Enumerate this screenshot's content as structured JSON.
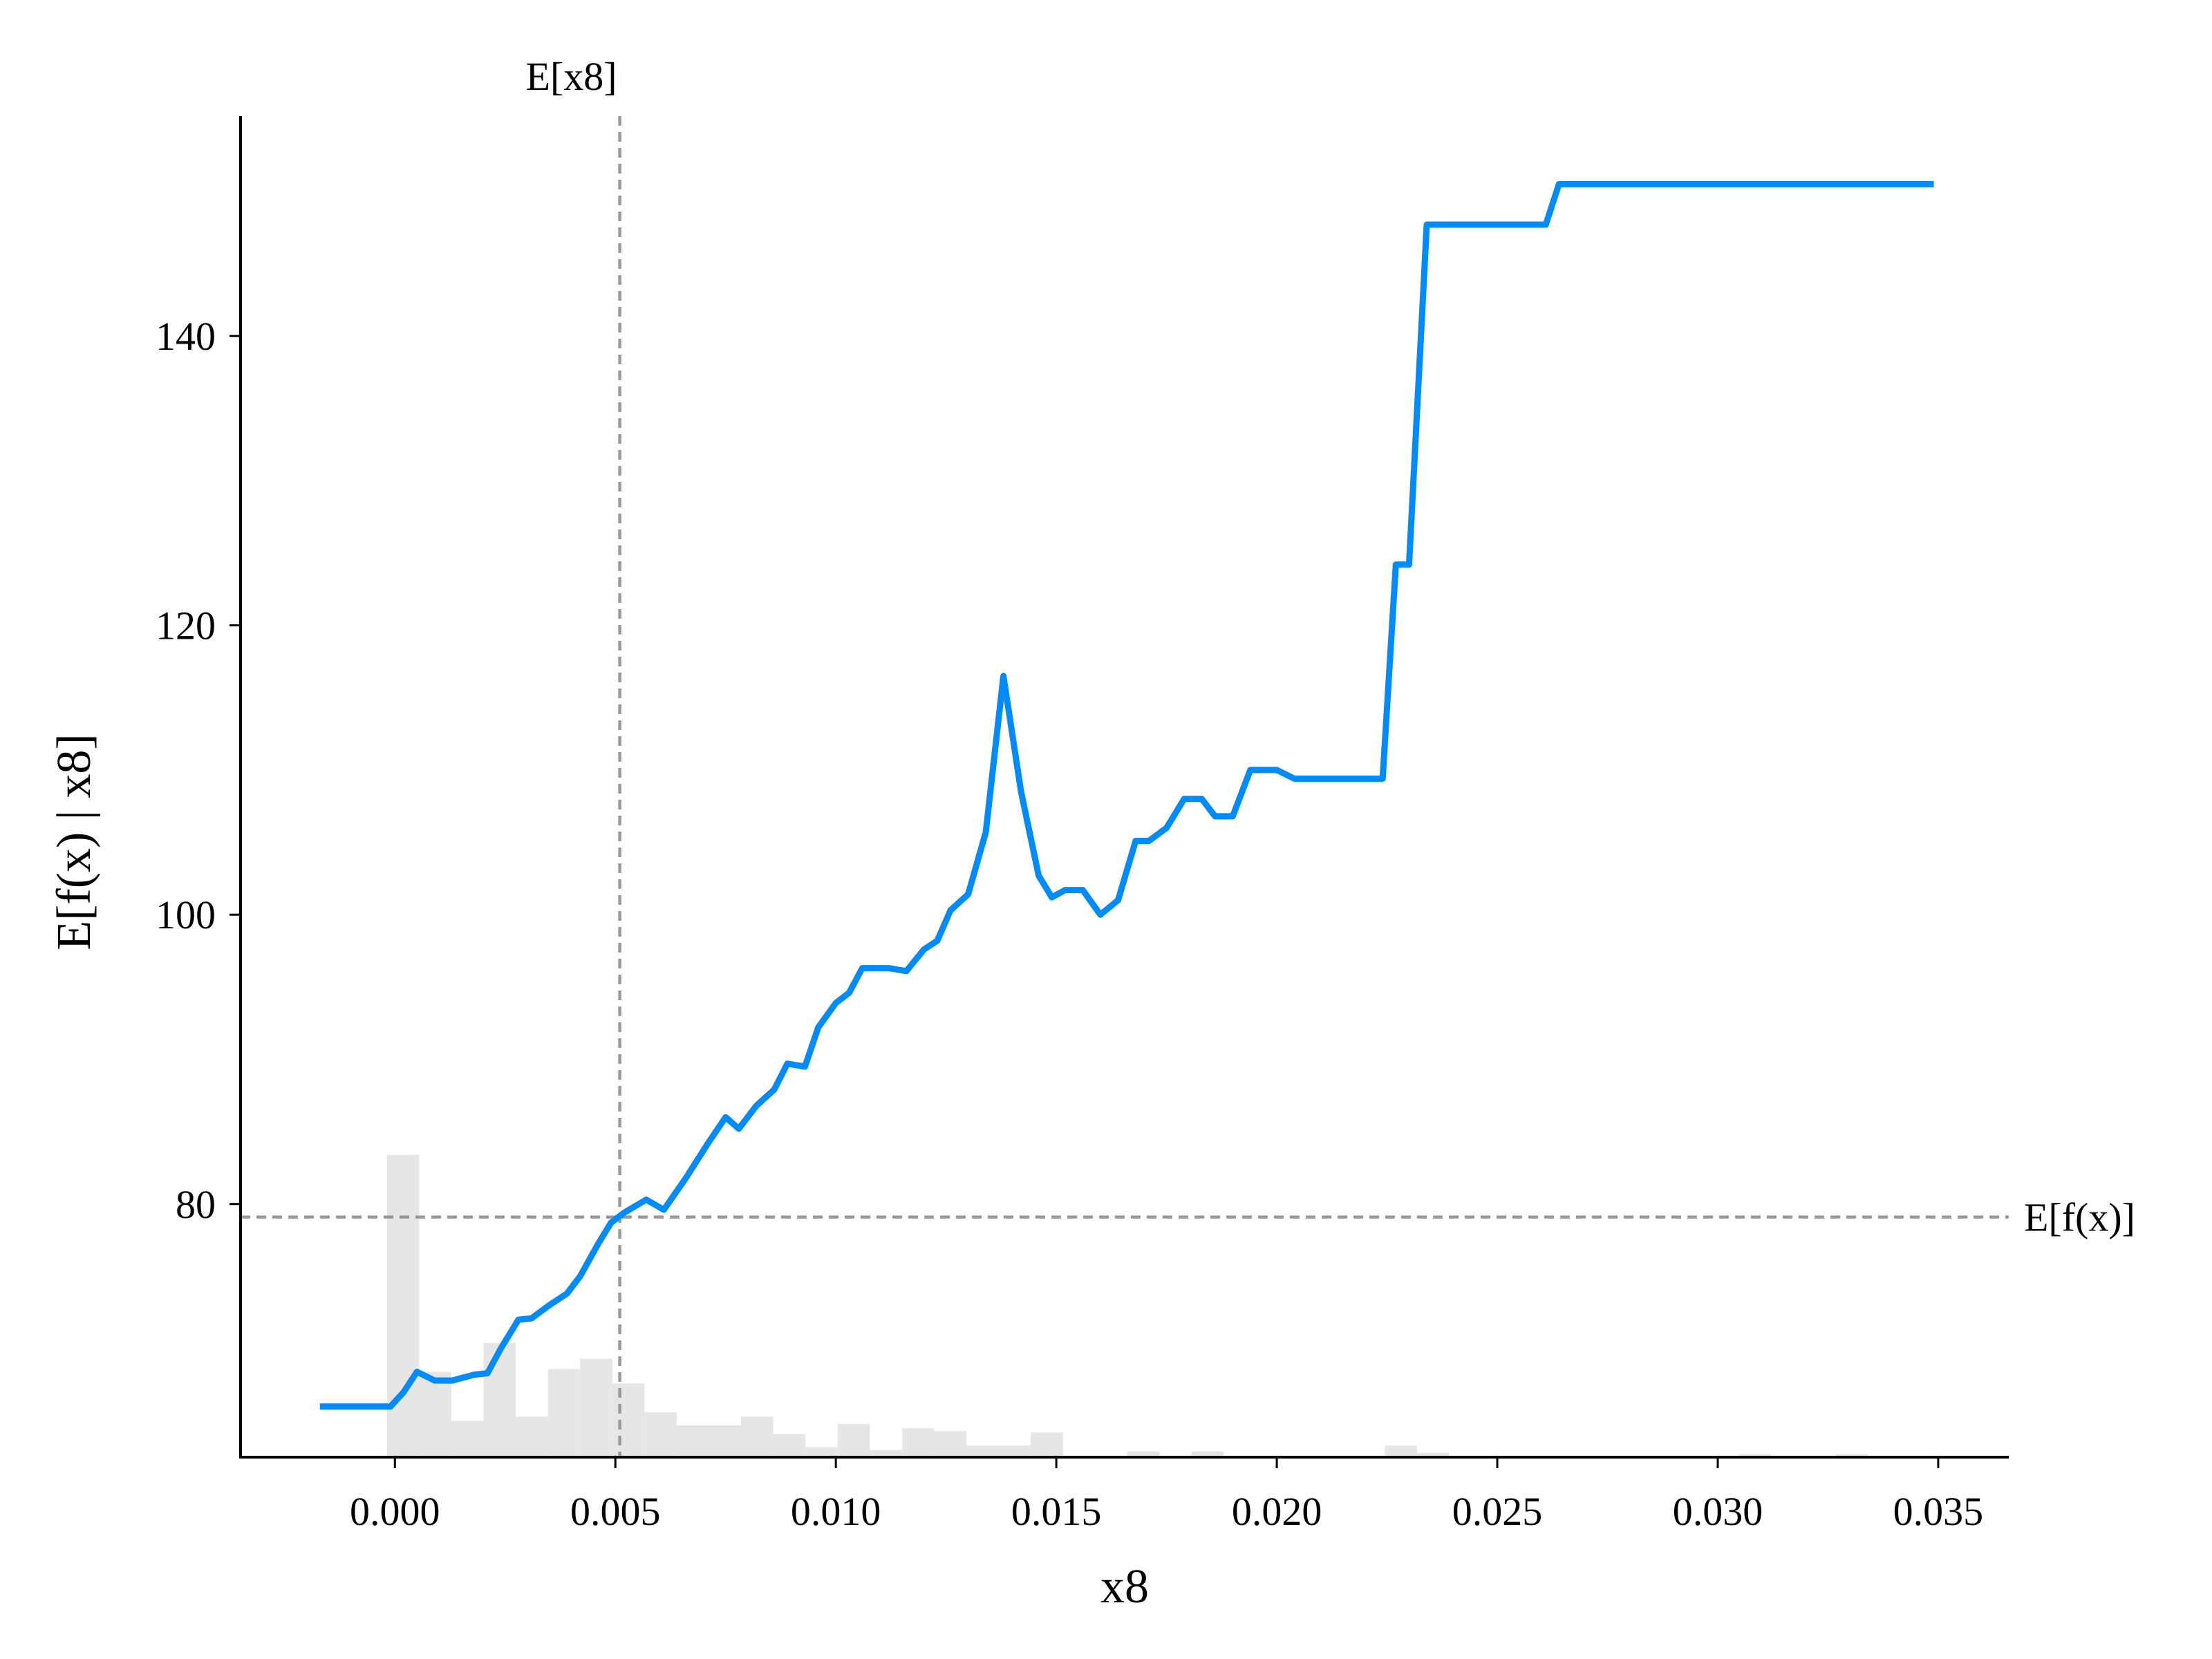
{
  "chart_data": {
    "type": "line",
    "title": "",
    "xlabel": "x8",
    "ylabel": "E[f(x) | x8]",
    "xlim": [
      -0.0035,
      0.0366
    ],
    "ylim": [
      62.5,
      155.2
    ],
    "x_ticks": [
      0.0,
      0.005,
      0.01,
      0.015,
      0.02,
      0.025,
      0.03,
      0.035
    ],
    "x_tick_labels": [
      "0.000",
      "0.005",
      "0.010",
      "0.015",
      "0.020",
      "0.025",
      "0.030",
      "0.035"
    ],
    "y_ticks": [
      80,
      100,
      120,
      140
    ],
    "y_tick_labels": [
      "80",
      "100",
      "120",
      "140"
    ],
    "grid": false,
    "reference_lines": {
      "vertical": {
        "x": 0.0051,
        "label": "E[x8]"
      },
      "horizontal": {
        "y": 79.1,
        "label": "E[f(x)]"
      }
    },
    "series": [
      {
        "color": "#008bfb",
        "points": [
          [
            -0.0017,
            66.0
          ],
          [
            -0.0001,
            66.0
          ],
          [
            0.0002,
            67.0
          ],
          [
            0.0005,
            68.4
          ],
          [
            0.0009,
            67.8
          ],
          [
            0.0013,
            67.8
          ],
          [
            0.0018,
            68.2
          ],
          [
            0.0021,
            68.3
          ],
          [
            0.0024,
            70.0
          ],
          [
            0.0028,
            72.0
          ],
          [
            0.0031,
            72.1
          ],
          [
            0.0035,
            73.0
          ],
          [
            0.0039,
            73.8
          ],
          [
            0.0042,
            75.0
          ],
          [
            0.0046,
            77.2
          ],
          [
            0.0049,
            78.7
          ],
          [
            0.0052,
            79.4
          ],
          [
            0.0057,
            80.3
          ],
          [
            0.0061,
            79.6
          ],
          [
            0.0066,
            81.8
          ],
          [
            0.0071,
            84.2
          ],
          [
            0.0075,
            86.0
          ],
          [
            0.0078,
            85.2
          ],
          [
            0.0082,
            86.8
          ],
          [
            0.0086,
            87.9
          ],
          [
            0.0089,
            89.7
          ],
          [
            0.0093,
            89.5
          ],
          [
            0.0096,
            92.2
          ],
          [
            0.01,
            93.9
          ],
          [
            0.0103,
            94.6
          ],
          [
            0.0106,
            96.3
          ],
          [
            0.0112,
            96.3
          ],
          [
            0.0116,
            96.1
          ],
          [
            0.012,
            97.6
          ],
          [
            0.0123,
            98.2
          ],
          [
            0.0126,
            100.3
          ],
          [
            0.013,
            101.4
          ],
          [
            0.0134,
            105.7
          ],
          [
            0.0138,
            116.5
          ],
          [
            0.0142,
            108.5
          ],
          [
            0.0146,
            102.7
          ],
          [
            0.0149,
            101.2
          ],
          [
            0.0152,
            101.7
          ],
          [
            0.0156,
            101.7
          ],
          [
            0.016,
            100.0
          ],
          [
            0.0164,
            101.0
          ],
          [
            0.0168,
            105.1
          ],
          [
            0.0171,
            105.1
          ],
          [
            0.0175,
            106.0
          ],
          [
            0.0179,
            108.0
          ],
          [
            0.0183,
            108.0
          ],
          [
            0.0186,
            106.8
          ],
          [
            0.019,
            106.8
          ],
          [
            0.0194,
            110.0
          ],
          [
            0.02,
            110.0
          ],
          [
            0.0204,
            109.4
          ],
          [
            0.0224,
            109.4
          ],
          [
            0.0227,
            124.2
          ],
          [
            0.023,
            124.2
          ],
          [
            0.0234,
            147.7
          ],
          [
            0.0261,
            147.7
          ],
          [
            0.0264,
            150.5
          ],
          [
            0.0349,
            150.5
          ]
        ]
      }
    ],
    "histogram": {
      "color": "#e6e6e6",
      "bin_width": 0.00073,
      "bins": [
        [
          -0.00018,
          83.4
        ],
        [
          0.00055,
          68.4
        ],
        [
          0.00128,
          65.0
        ],
        [
          0.00201,
          70.4
        ],
        [
          0.00274,
          65.3
        ],
        [
          0.00347,
          68.6
        ],
        [
          0.0042,
          69.3
        ],
        [
          0.00493,
          67.6
        ],
        [
          0.00566,
          65.6
        ],
        [
          0.00639,
          64.7
        ],
        [
          0.00712,
          64.7
        ],
        [
          0.00785,
          65.3
        ],
        [
          0.00858,
          64.1
        ],
        [
          0.00931,
          63.2
        ],
        [
          0.01004,
          64.8
        ],
        [
          0.01077,
          63.0
        ],
        [
          0.0115,
          64.5
        ],
        [
          0.01223,
          64.3
        ],
        [
          0.01296,
          63.3
        ],
        [
          0.01369,
          63.3
        ],
        [
          0.01442,
          64.2
        ],
        [
          0.01661,
          62.9
        ],
        [
          0.01807,
          62.9
        ],
        [
          0.02245,
          63.3
        ],
        [
          0.02318,
          62.8
        ],
        [
          0.03048,
          62.7
        ],
        [
          0.03267,
          62.7
        ]
      ]
    }
  }
}
